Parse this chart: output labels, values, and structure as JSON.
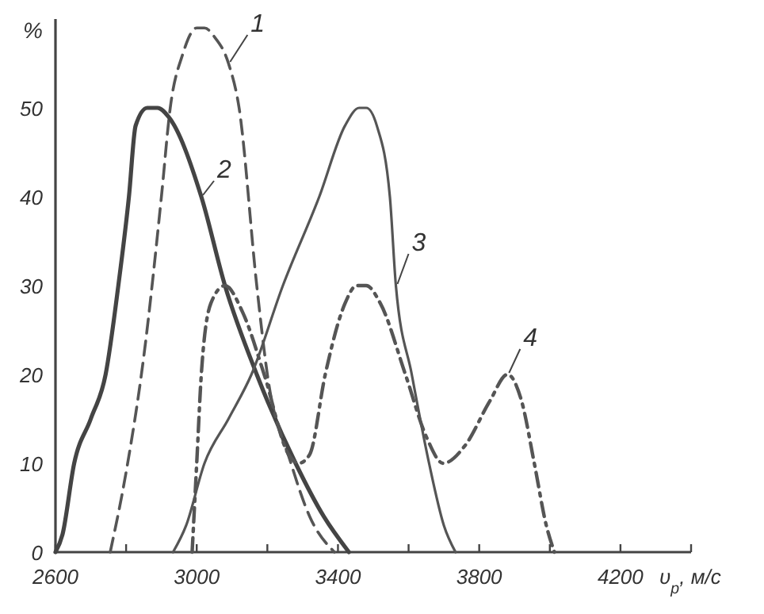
{
  "chart_data": {
    "type": "line",
    "xlabel": "υ$_{p}$, м/с",
    "ylabel": "%",
    "xlim": [
      2600,
      4400
    ],
    "xticks": [
      2600,
      {
        "value": 2800,
        "label": null
      },
      3000,
      {
        "value": 3200,
        "label": null
      },
      3400,
      {
        "value": 3600,
        "label": null
      },
      3800,
      {
        "value": 4000,
        "label": null
      },
      4200,
      {
        "value": 4400,
        "label": null
      }
    ],
    "ylim": [
      0,
      60
    ],
    "yticks": [
      0,
      10,
      20,
      30,
      40,
      50
    ],
    "grid": false,
    "series": [
      {
        "name": "1",
        "color": "#555555",
        "line_style": "dashed",
        "x": [
          2755,
          2800,
          2850,
          2900,
          2925,
          2960,
          3000,
          3022,
          3050,
          3090,
          3120,
          3170,
          3200,
          3267,
          3320,
          3390
        ],
        "values": [
          0,
          9,
          22,
          40,
          50,
          56,
          59,
          59,
          58,
          55,
          50,
          30,
          20,
          10,
          4,
          0
        ]
      },
      {
        "name": "2",
        "color": "#444444",
        "line_style": "solid",
        "x": [
          2600,
          2620,
          2653,
          2700,
          2742,
          2778,
          2808,
          2827,
          2860,
          2889,
          2920,
          3013,
          3080,
          3170,
          3280,
          3360,
          3431
        ],
        "values": [
          0,
          2,
          10,
          15,
          20,
          30,
          40,
          48,
          50,
          50,
          49,
          40,
          30,
          20,
          10,
          4,
          0
        ]
      },
      {
        "name": "3",
        "color": "#555555",
        "line_style": "solid",
        "x": [
          2933,
          2970,
          3022,
          3090,
          3155,
          3244,
          3347,
          3420,
          3460,
          3480,
          3510,
          3547,
          3564,
          3609,
          3658,
          3700,
          3733
        ],
        "values": [
          0,
          3,
          10,
          15,
          20,
          30,
          40,
          48,
          50,
          50,
          48,
          40,
          30,
          20,
          10,
          3,
          0
        ]
      },
      {
        "name": "4",
        "color": "#555555",
        "line_style": "dashdot",
        "x": [
          2987,
          3000,
          3013,
          3040,
          3080,
          3130,
          3191,
          3260,
          3289,
          3320,
          3364,
          3420,
          3453,
          3480,
          3520,
          3591,
          3650,
          3698,
          3760,
          3830,
          3880,
          3920,
          3956,
          3990,
          4013
        ],
        "values": [
          0,
          10,
          20,
          28,
          30,
          27,
          20,
          11,
          10,
          11,
          20,
          28,
          30,
          30,
          28,
          20,
          13,
          10,
          12,
          17,
          20,
          17,
          10,
          3,
          0
        ]
      }
    ]
  }
}
